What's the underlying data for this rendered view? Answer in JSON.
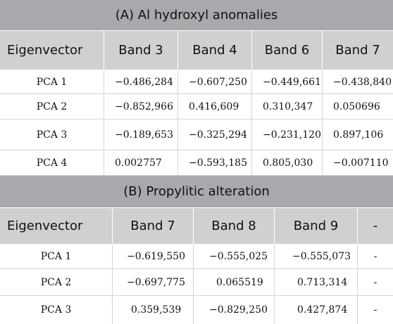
{
  "table_a": {
    "title": "(A) Al hydroxyl anomalies",
    "headers": [
      "Eigenvector",
      "Band 3",
      "Band 4",
      "Band 6",
      "Band 7"
    ],
    "rows": [
      [
        "PCA 1",
        "−0.486,284",
        "−0.607,250",
        "−0.449,661",
        "−0.438,840"
      ],
      [
        "PCA 2",
        "−0.852,966",
        "0.416,609",
        "0.310,347",
        "0.050696"
      ],
      [
        "PCA 3",
        "−0.189,653",
        "−0.325,294",
        "−0.231,120",
        "0.897,106"
      ],
      [
        "PCA 4",
        "0.002757",
        "−0.593,185",
        "0.805,030",
        "−0.007110"
      ]
    ]
  },
  "table_b": {
    "title": "(B) Propylitic alteration",
    "headers": [
      "Eigenvector",
      "Band 7",
      "Band 8",
      "Band 9",
      "-"
    ],
    "rows": [
      [
        "PCA 1",
        "−0.619,550",
        "−0.555,025",
        "−0.555,073",
        "-"
      ],
      [
        "PCA 2",
        "−0.697,775",
        "0.065519",
        "0.713,314",
        "-"
      ],
      [
        "PCA 3",
        "0.359,539",
        "−0.829,250",
        "0.427,874",
        "-"
      ]
    ]
  }
}
